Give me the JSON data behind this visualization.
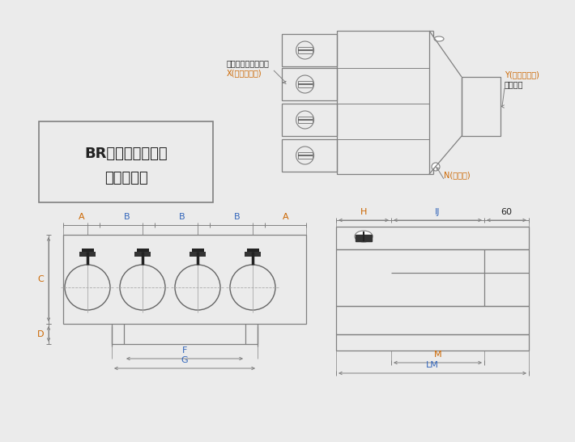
{
  "bg_color": "#ebebeb",
  "line_color": "#808080",
  "dim_color_orange": "#cc6600",
  "dim_color_blue": "#3366bb",
  "text_color_black": "#222222",
  "title_line1": "BR型水平多分岐管",
  "title_line2": "概略寸法図",
  "label_X": "X(接続出口側)",
  "label_X2": "ダンパー付ホース口",
  "label_Y": "Y(接続入口側)",
  "label_Y2": "ホース口",
  "label_N": "N(止め穴)",
  "dim_A": "A",
  "dim_B": "B",
  "dim_C": "C",
  "dim_D": "D",
  "dim_F": "F",
  "dim_G": "G",
  "dim_H": "H",
  "dim_IJ": "IJ",
  "dim_60": "60",
  "dim_M": "M",
  "dim_LM": "LM"
}
